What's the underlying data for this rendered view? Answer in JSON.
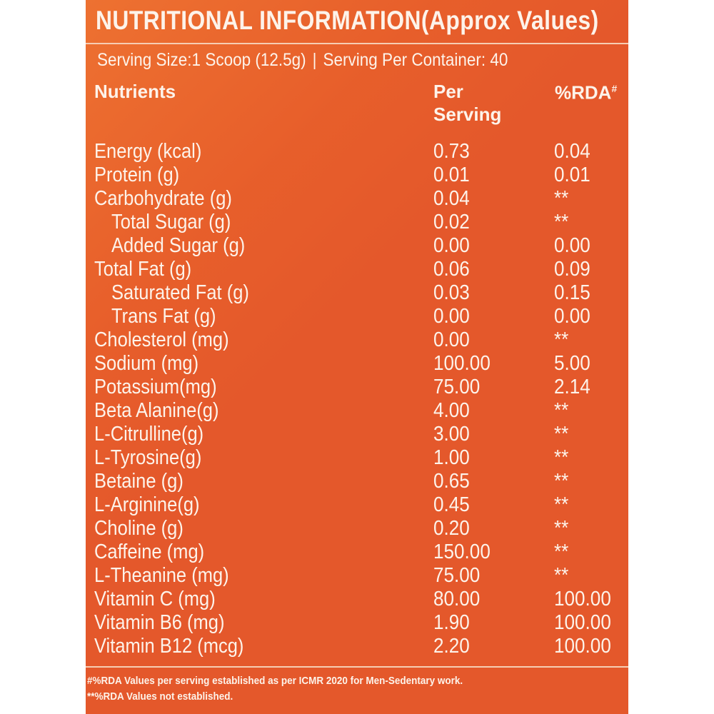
{
  "title": "NUTRITIONAL  INFORMATION(Approx Values)",
  "serving": {
    "size": "Serving Size:1 Scoop (12.5g)",
    "separator": "|",
    "per_container": "Serving Per Container: 40"
  },
  "headers": {
    "nutrients": "Nutrients",
    "per_serving_line1": "Per",
    "per_serving_line2": "Serving",
    "rda": "%RDA",
    "rda_mark": "#"
  },
  "rows": [
    {
      "name": "Energy (kcal)",
      "per": "0.73",
      "rda": "0.04"
    },
    {
      "name": "Protein (g)",
      "per": "0.01",
      "rda": "0.01"
    },
    {
      "name": "Carbohydrate (g)",
      "per": "0.04",
      "rda": "**"
    },
    {
      "name": "Total Sugar (g)",
      "per": "0.02",
      "rda": "**"
    },
    {
      "name": "Added Sugar (g)",
      "per": "0.00",
      "rda": "0.00"
    },
    {
      "name": "Total Fat (g)",
      "per": "0.06",
      "rda": "0.09"
    },
    {
      "name": "Saturated Fat (g)",
      "per": "0.03",
      "rda": "0.15"
    },
    {
      "name": "Trans Fat (g)",
      "per": "0.00",
      "rda": "0.00"
    },
    {
      "name": "Cholesterol (mg)",
      "per": "0.00",
      "rda": "**"
    },
    {
      "name": "Sodium (mg)",
      "per": "100.00",
      "rda": "5.00"
    },
    {
      "name": "Potassium(mg)",
      "per": "75.00",
      "rda": "2.14"
    },
    {
      "name": "Beta Alanine(g)",
      "per": "4.00",
      "rda": "**"
    },
    {
      "name": "L-Citrulline(g)",
      "per": "3.00",
      "rda": "**"
    },
    {
      "name": "L-Tyrosine(g)",
      "per": "1.00",
      "rda": "**"
    },
    {
      "name": "Betaine (g)",
      "per": "0.65",
      "rda": "**"
    },
    {
      "name": "L-Arginine(g)",
      "per": "0.45",
      "rda": "**"
    },
    {
      "name": "Choline (g)",
      "per": "0.20",
      "rda": "**"
    },
    {
      "name": "Caffeine (mg)",
      "per": "150.00",
      "rda": "**"
    },
    {
      "name": "L-Theanine (mg)",
      "per": "75.00",
      "rda": "**"
    },
    {
      "name": "Vitamin C (mg)",
      "per": "80.00",
      "rda": "100.00"
    },
    {
      "name": "Vitamin B6 (mg)",
      "per": "1.90",
      "rda": "100.00"
    },
    {
      "name": "Vitamin B12 (mcg)",
      "per": "2.20",
      "rda": "100.00"
    }
  ],
  "footnotes": {
    "line1": "#%RDA Values per serving established as per ICMR 2020 for Men-Sedentary work.",
    "line2": "**%RDA Values not established."
  },
  "colors": {
    "panel_background": "#e4582b",
    "text": "#fdf3ea",
    "rule": "#f6cdb3"
  }
}
